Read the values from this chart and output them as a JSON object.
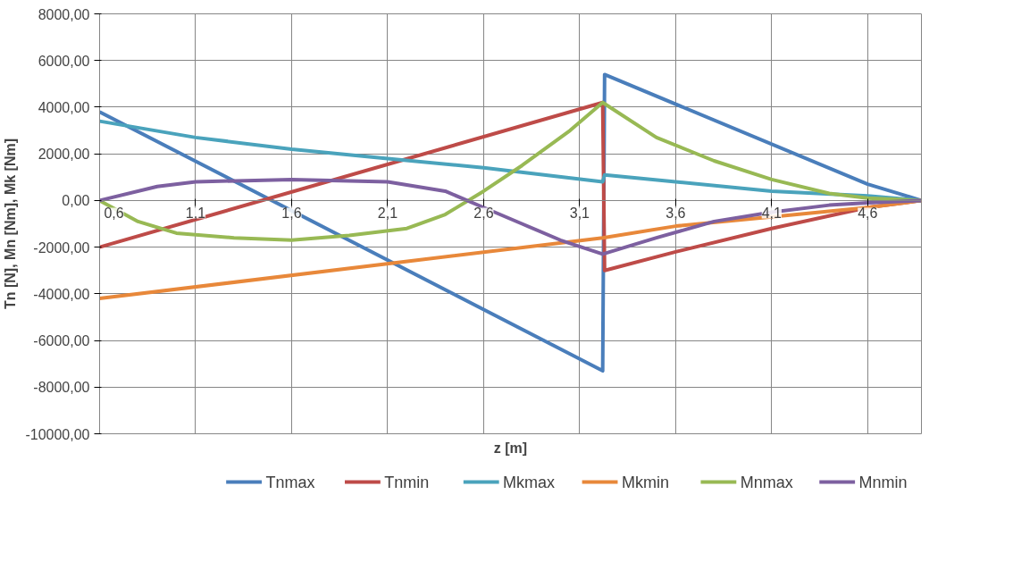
{
  "chart_data": {
    "type": "line",
    "xlabel": "z [m]",
    "ylabel": "Tn [N], Mn [Nm], Mk [Nm]",
    "xlim": [
      0.6,
      4.88
    ],
    "xticks": [
      {
        "value": 0.6,
        "label": "0,6"
      },
      {
        "value": 1.1,
        "label": "1,1"
      },
      {
        "value": 1.6,
        "label": "1,6"
      },
      {
        "value": 2.1,
        "label": "2,1"
      },
      {
        "value": 2.6,
        "label": "2,6"
      },
      {
        "value": 3.1,
        "label": "3,1"
      },
      {
        "value": 3.6,
        "label": "3,6"
      },
      {
        "value": 4.1,
        "label": "4,1"
      },
      {
        "value": 4.6,
        "label": "4,6"
      }
    ],
    "ylim": [
      -10000,
      8000
    ],
    "yticks": [
      {
        "value": 8000,
        "label": "8000,00"
      },
      {
        "value": 6000,
        "label": "6000,00"
      },
      {
        "value": 4000,
        "label": "4000,00"
      },
      {
        "value": 2000,
        "label": "2000,00"
      },
      {
        "value": 0,
        "label": "0,00"
      },
      {
        "value": -2000,
        "label": "-2000,00"
      },
      {
        "value": -4000,
        "label": "-4000,00"
      },
      {
        "value": -6000,
        "label": "-6000,00"
      },
      {
        "value": -8000,
        "label": "-8000,00"
      },
      {
        "value": -10000,
        "label": "-10000,00"
      }
    ],
    "grid": true,
    "legend": "bottom",
    "marker": "none",
    "line_style": "solid",
    "series": [
      {
        "name": "Tnmax",
        "color": "#4a7ebb",
        "x": [
          0.6,
          3.22,
          3.23,
          4.6,
          4.8,
          4.88
        ],
        "values": [
          3800,
          -7300,
          5400,
          700,
          200,
          0
        ]
      },
      {
        "name": "Tnmin",
        "color": "#be4b48",
        "x": [
          0.6,
          3.22,
          3.23,
          3.6,
          4.1,
          4.6,
          4.88
        ],
        "values": [
          -2000,
          4200,
          -3000,
          -2200,
          -1200,
          -300,
          0
        ]
      },
      {
        "name": "Mkmax",
        "color": "#4aa3bc",
        "x": [
          0.6,
          1.1,
          1.6,
          2.1,
          2.6,
          3.22,
          3.23,
          3.6,
          4.1,
          4.6,
          4.88
        ],
        "values": [
          3400,
          2700,
          2200,
          1800,
          1400,
          800,
          1100,
          800,
          400,
          200,
          0
        ]
      },
      {
        "name": "Mkmin",
        "color": "#e8883a",
        "x": [
          0.6,
          3.22,
          3.6,
          4.1,
          4.6,
          4.88
        ],
        "values": [
          -4200,
          -1600,
          -1100,
          -700,
          -300,
          0
        ]
      },
      {
        "name": "Mnmax",
        "color": "#98b954",
        "x": [
          0.6,
          0.8,
          1.0,
          1.3,
          1.6,
          1.9,
          2.2,
          2.4,
          2.6,
          2.8,
          3.05,
          3.22,
          3.5,
          3.8,
          4.1,
          4.4,
          4.6,
          4.88
        ],
        "values": [
          0,
          -900,
          -1400,
          -1600,
          -1700,
          -1500,
          -1200,
          -600,
          400,
          1500,
          3000,
          4200,
          2700,
          1700,
          900,
          300,
          100,
          0
        ]
      },
      {
        "name": "Mnmin",
        "color": "#7d60a0",
        "x": [
          0.6,
          0.9,
          1.1,
          1.6,
          2.1,
          2.4,
          2.6,
          2.8,
          3.0,
          3.22,
          3.5,
          3.8,
          4.1,
          4.4,
          4.6,
          4.88
        ],
        "values": [
          0,
          600,
          800,
          900,
          800,
          400,
          -300,
          -1000,
          -1700,
          -2300,
          -1600,
          -900,
          -500,
          -200,
          -100,
          0
        ]
      }
    ]
  }
}
